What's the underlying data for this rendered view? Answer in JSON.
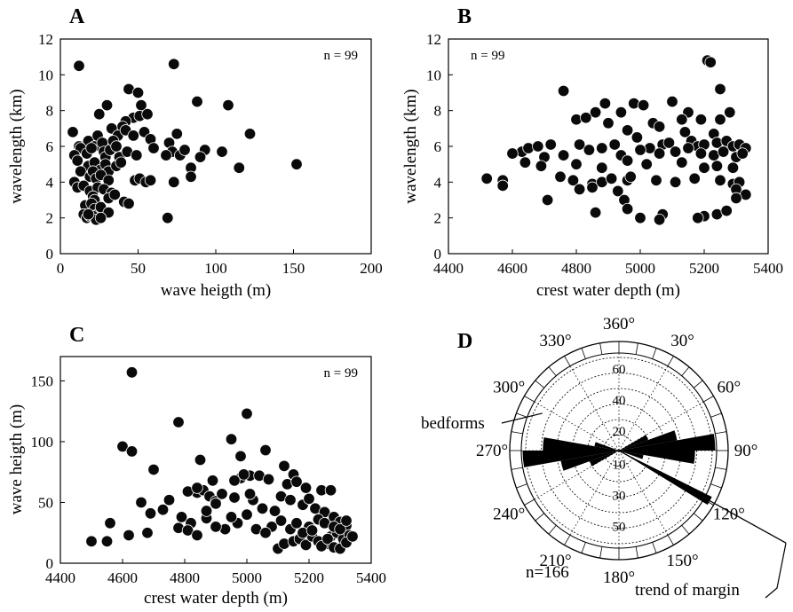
{
  "chart_data": [
    {
      "panel": "A",
      "type": "scatter",
      "xlabel": "wave heigth (m)",
      "ylabel": "wavelength (km)",
      "xlim": [
        0,
        200
      ],
      "ylim": [
        0,
        12
      ],
      "xticks": [
        0,
        50,
        100,
        150,
        200
      ],
      "yticks": [
        0,
        2,
        4,
        6,
        8,
        10,
        12
      ],
      "annotation": "n = 99",
      "points": [
        [
          12,
          10.5
        ],
        [
          73,
          10.6
        ],
        [
          44,
          9.2
        ],
        [
          50,
          9.0
        ],
        [
          88,
          8.5
        ],
        [
          108,
          8.3
        ],
        [
          30,
          8.3
        ],
        [
          52,
          8.3
        ],
        [
          25,
          7.8
        ],
        [
          47,
          7.6
        ],
        [
          51,
          7.7
        ],
        [
          56,
          7.8
        ],
        [
          42,
          7.4
        ],
        [
          40,
          7.1
        ],
        [
          33,
          7.0
        ],
        [
          8,
          6.8
        ],
        [
          18,
          6.3
        ],
        [
          22,
          6.0
        ],
        [
          24,
          6.6
        ],
        [
          27,
          6.2
        ],
        [
          37,
          6.6
        ],
        [
          42,
          6.9
        ],
        [
          47,
          6.6
        ],
        [
          54,
          6.8
        ],
        [
          58,
          6.4
        ],
        [
          70,
          6.2
        ],
        [
          75,
          6.7
        ],
        [
          122,
          6.7
        ],
        [
          12,
          6.0
        ],
        [
          13,
          5.9
        ],
        [
          17,
          5.6
        ],
        [
          20,
          5.9
        ],
        [
          28,
          5.7
        ],
        [
          29,
          5.4
        ],
        [
          32,
          5.8
        ],
        [
          34,
          6.3
        ],
        [
          36,
          6.0
        ],
        [
          38,
          5.4
        ],
        [
          43,
          5.7
        ],
        [
          49,
          5.5
        ],
        [
          60,
          5.9
        ],
        [
          72,
          5.7
        ],
        [
          77,
          5.5
        ],
        [
          80,
          5.8
        ],
        [
          93,
          5.8
        ],
        [
          104,
          5.7
        ],
        [
          68,
          5.5
        ],
        [
          90,
          5.4
        ],
        [
          9,
          5.5
        ],
        [
          11,
          5.2
        ],
        [
          18,
          4.9
        ],
        [
          22,
          5.1
        ],
        [
          26,
          4.7
        ],
        [
          29,
          5.0
        ],
        [
          31,
          4.6
        ],
        [
          36,
          4.9
        ],
        [
          39,
          5.1
        ],
        [
          13,
          4.6
        ],
        [
          152,
          5.0
        ],
        [
          84,
          4.8
        ],
        [
          115,
          4.8
        ],
        [
          19,
          4.3
        ],
        [
          21,
          4.6
        ],
        [
          23,
          4.2
        ],
        [
          26,
          4.4
        ],
        [
          31,
          4.1
        ],
        [
          48,
          4.1
        ],
        [
          51,
          4.2
        ],
        [
          55,
          4.0
        ],
        [
          58,
          4.1
        ],
        [
          84,
          4.3
        ],
        [
          9,
          4.0
        ],
        [
          11,
          3.7
        ],
        [
          15,
          3.8
        ],
        [
          19,
          3.5
        ],
        [
          24,
          3.7
        ],
        [
          28,
          3.6
        ],
        [
          33,
          3.4
        ],
        [
          21,
          3.2
        ],
        [
          22,
          3.0
        ],
        [
          31,
          3.1
        ],
        [
          35,
          3.3
        ],
        [
          41,
          2.9
        ],
        [
          44,
          2.8
        ],
        [
          73,
          4.0
        ],
        [
          16,
          2.7
        ],
        [
          20,
          2.8
        ],
        [
          22,
          2.5
        ],
        [
          24,
          2.2
        ],
        [
          26,
          2.6
        ],
        [
          31,
          2.3
        ],
        [
          15,
          2.2
        ],
        [
          17,
          2.0
        ],
        [
          19,
          2.1
        ],
        [
          21,
          2.1
        ],
        [
          23,
          1.9
        ],
        [
          69,
          2.0
        ],
        [
          26,
          2.0
        ],
        [
          18,
          2.2
        ]
      ]
    },
    {
      "panel": "B",
      "type": "scatter",
      "xlabel": "crest water depth (m)",
      "ylabel": "wavelength (km)",
      "xlim": [
        4400,
        5400
      ],
      "ylim": [
        0,
        12
      ],
      "xticks": [
        4400,
        4600,
        4800,
        5000,
        5200,
        5400
      ],
      "yticks": [
        0,
        2,
        4,
        6,
        8,
        10,
        12
      ],
      "annotation": "n = 99",
      "points": [
        [
          5210,
          10.8
        ],
        [
          5220,
          10.7
        ],
        [
          4760,
          9.1
        ],
        [
          5250,
          9.2
        ],
        [
          5100,
          8.5
        ],
        [
          4890,
          8.4
        ],
        [
          4980,
          8.4
        ],
        [
          5010,
          8.3
        ],
        [
          4860,
          7.9
        ],
        [
          4940,
          7.9
        ],
        [
          5150,
          7.9
        ],
        [
          5280,
          7.9
        ],
        [
          4800,
          7.5
        ],
        [
          4830,
          7.6
        ],
        [
          5130,
          7.5
        ],
        [
          5190,
          7.5
        ],
        [
          5250,
          7.5
        ],
        [
          4900,
          7.3
        ],
        [
          5040,
          7.3
        ],
        [
          5060,
          7.1
        ],
        [
          5140,
          6.8
        ],
        [
          5230,
          6.7
        ],
        [
          4960,
          6.9
        ],
        [
          4990,
          6.5
        ],
        [
          4630,
          5.7
        ],
        [
          4650,
          5.9
        ],
        [
          4680,
          6.0
        ],
        [
          4720,
          6.1
        ],
        [
          4810,
          6.1
        ],
        [
          4840,
          5.8
        ],
        [
          4880,
          5.9
        ],
        [
          4920,
          6.1
        ],
        [
          5030,
          5.9
        ],
        [
          5070,
          6.1
        ],
        [
          5090,
          6.2
        ],
        [
          5160,
          6.3
        ],
        [
          5180,
          6.0
        ],
        [
          5200,
          6.1
        ],
        [
          5240,
          6.2
        ],
        [
          5270,
          6.3
        ],
        [
          5290,
          6.0
        ],
        [
          5310,
          6.1
        ],
        [
          5330,
          5.9
        ],
        [
          4600,
          5.6
        ],
        [
          4700,
          5.4
        ],
        [
          4760,
          5.5
        ],
        [
          4940,
          5.5
        ],
        [
          5000,
          5.8
        ],
        [
          5060,
          5.6
        ],
        [
          5110,
          5.7
        ],
        [
          5150,
          5.9
        ],
        [
          5190,
          5.6
        ],
        [
          5230,
          5.5
        ],
        [
          5260,
          5.7
        ],
        [
          5300,
          5.4
        ],
        [
          5320,
          5.6
        ],
        [
          4640,
          5.1
        ],
        [
          4690,
          4.9
        ],
        [
          4800,
          5.0
        ],
        [
          4880,
          4.8
        ],
        [
          4960,
          5.2
        ],
        [
          5020,
          5.0
        ],
        [
          5130,
          5.1
        ],
        [
          5200,
          4.8
        ],
        [
          5240,
          4.9
        ],
        [
          5290,
          4.8
        ],
        [
          4520,
          4.2
        ],
        [
          4570,
          4.1
        ],
        [
          4750,
          4.3
        ],
        [
          4790,
          4.1
        ],
        [
          4850,
          3.9
        ],
        [
          4880,
          4.0
        ],
        [
          4910,
          4.2
        ],
        [
          4960,
          4.1
        ],
        [
          4970,
          4.3
        ],
        [
          5050,
          4.1
        ],
        [
          5110,
          4.0
        ],
        [
          5170,
          4.2
        ],
        [
          5250,
          4.1
        ],
        [
          5290,
          3.9
        ],
        [
          5310,
          4.0
        ],
        [
          4570,
          3.8
        ],
        [
          4810,
          3.6
        ],
        [
          4850,
          3.7
        ],
        [
          4930,
          3.5
        ],
        [
          5300,
          3.6
        ],
        [
          5330,
          3.3
        ],
        [
          4710,
          3.0
        ],
        [
          4950,
          3.0
        ],
        [
          5300,
          3.1
        ],
        [
          4860,
          2.3
        ],
        [
          4960,
          2.5
        ],
        [
          5070,
          2.2
        ],
        [
          5200,
          2.1
        ],
        [
          5240,
          2.2
        ],
        [
          5270,
          2.4
        ],
        [
          5000,
          2.0
        ],
        [
          5060,
          1.9
        ],
        [
          5180,
          2.0
        ]
      ]
    },
    {
      "panel": "C",
      "type": "scatter",
      "xlabel": "crest water depth (m)",
      "ylabel": "wave heigth (m)",
      "xlim": [
        4400,
        5400
      ],
      "ylim": [
        0,
        170
      ],
      "xticks": [
        4400,
        4600,
        4800,
        5000,
        5200,
        5400
      ],
      "yticks": [
        0,
        50,
        100,
        150
      ],
      "annotation": "n = 99",
      "points": [
        [
          4630,
          157
        ],
        [
          5000,
          123
        ],
        [
          4780,
          116
        ],
        [
          4950,
          102
        ],
        [
          4600,
          96
        ],
        [
          4630,
          92
        ],
        [
          4980,
          88
        ],
        [
          5060,
          93
        ],
        [
          5120,
          80
        ],
        [
          4850,
          85
        ],
        [
          4700,
          77
        ],
        [
          5010,
          72
        ],
        [
          4980,
          70
        ],
        [
          5150,
          73
        ],
        [
          4990,
          73
        ],
        [
          5040,
          72
        ],
        [
          4890,
          68
        ],
        [
          5240,
          60
        ],
        [
          5270,
          60
        ],
        [
          4750,
          52
        ],
        [
          4660,
          50
        ],
        [
          4690,
          41
        ],
        [
          4730,
          44
        ],
        [
          4790,
          38
        ],
        [
          4820,
          33
        ],
        [
          4870,
          37
        ],
        [
          4930,
          28
        ],
        [
          4970,
          33
        ],
        [
          5030,
          28
        ],
        [
          5080,
          30
        ],
        [
          4840,
          58
        ],
        [
          4860,
          60
        ],
        [
          4880,
          55
        ],
        [
          4900,
          51
        ],
        [
          4960,
          54
        ],
        [
          4920,
          57
        ],
        [
          5020,
          52
        ],
        [
          5050,
          45
        ],
        [
          5090,
          43
        ],
        [
          5110,
          55
        ],
        [
          5140,
          52
        ],
        [
          5180,
          48
        ],
        [
          5200,
          53
        ],
        [
          5220,
          45
        ],
        [
          5250,
          42
        ],
        [
          5280,
          38
        ],
        [
          5300,
          34
        ],
        [
          5320,
          31
        ],
        [
          4500,
          18
        ],
        [
          4550,
          18
        ],
        [
          4560,
          33
        ],
        [
          4620,
          23
        ],
        [
          4680,
          25
        ],
        [
          4780,
          29
        ],
        [
          4810,
          27
        ],
        [
          4840,
          23
        ],
        [
          4900,
          30
        ],
        [
          4950,
          38
        ],
        [
          5000,
          40
        ],
        [
          5060,
          25
        ],
        [
          5100,
          12
        ],
        [
          5120,
          16
        ],
        [
          5150,
          18
        ],
        [
          5170,
          20
        ],
        [
          5190,
          15
        ],
        [
          5210,
          22
        ],
        [
          5230,
          18
        ],
        [
          5260,
          16
        ],
        [
          5270,
          22
        ],
        [
          5290,
          25
        ],
        [
          5310,
          20
        ],
        [
          5330,
          23
        ],
        [
          5110,
          35
        ],
        [
          5140,
          28
        ],
        [
          5160,
          33
        ],
        [
          5200,
          30
        ],
        [
          5230,
          36
        ],
        [
          5250,
          33
        ],
        [
          5280,
          30
        ],
        [
          5300,
          28
        ],
        [
          5320,
          35
        ],
        [
          5180,
          25
        ],
        [
          5210,
          27
        ],
        [
          5240,
          14
        ],
        [
          5260,
          20
        ],
        [
          5280,
          13
        ],
        [
          5300,
          12
        ],
        [
          5320,
          17
        ],
        [
          5340,
          22
        ],
        [
          4870,
          43
        ],
        [
          4900,
          49
        ],
        [
          5010,
          57
        ],
        [
          5130,
          65
        ],
        [
          5160,
          67
        ],
        [
          5190,
          62
        ],
        [
          4960,
          68
        ],
        [
          4810,
          59
        ],
        [
          4840,
          62
        ],
        [
          5070,
          69
        ]
      ]
    },
    {
      "panel": "D",
      "type": "rose",
      "annotation": "n=166",
      "angle_labels": [
        "360°",
        "30°",
        "60°",
        "90°",
        "120°",
        "150°",
        "180°",
        "210°",
        "240°",
        "270°",
        "300°",
        "330°"
      ],
      "upper_ring_labels": [
        "20",
        "40",
        "60"
      ],
      "lower_ring_labels": [
        "10",
        "30",
        "50"
      ],
      "max_radius": 60,
      "sectors": [
        {
          "start": 60,
          "end": 70,
          "value": 20
        },
        {
          "start": 70,
          "end": 80,
          "value": 38
        },
        {
          "start": 80,
          "end": 90,
          "value": 62
        },
        {
          "start": 90,
          "end": 100,
          "value": 49
        },
        {
          "start": 100,
          "end": 110,
          "value": 16
        },
        {
          "start": 240,
          "end": 250,
          "value": 20
        },
        {
          "start": 250,
          "end": 260,
          "value": 38
        },
        {
          "start": 260,
          "end": 270,
          "value": 62
        },
        {
          "start": 270,
          "end": 280,
          "value": 49
        },
        {
          "start": 280,
          "end": 290,
          "value": 16
        }
      ],
      "margin_trend_deg": 119,
      "annotations": [
        {
          "text": "bedforms"
        },
        {
          "text": "trend of margin"
        }
      ]
    }
  ]
}
